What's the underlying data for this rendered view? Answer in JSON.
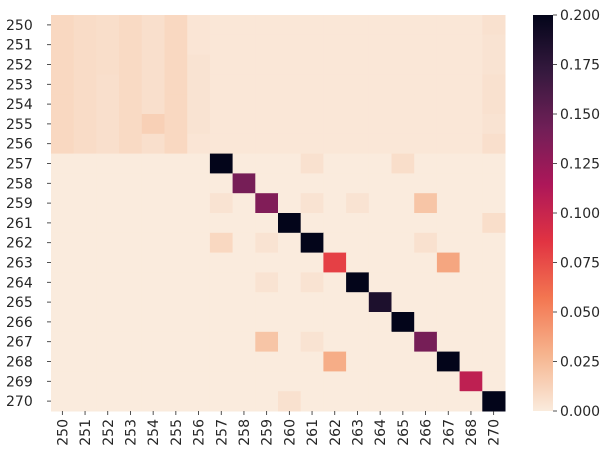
{
  "chart_data": {
    "type": "heatmap",
    "title": "",
    "xlabel": "",
    "ylabel": "",
    "rows": [
      "250",
      "251",
      "252",
      "253",
      "254",
      "255",
      "256",
      "257",
      "258",
      "259",
      "261",
      "262",
      "263",
      "264",
      "265",
      "266",
      "267",
      "268",
      "269",
      "270"
    ],
    "columns": [
      "250",
      "251",
      "252",
      "253",
      "254",
      "255",
      "256",
      "257",
      "258",
      "259",
      "260",
      "261",
      "262",
      "263",
      "264",
      "265",
      "266",
      "267",
      "268",
      "270"
    ],
    "matrix": [
      [
        0.01,
        0.008,
        0.007,
        0.009,
        0.006,
        0.01,
        0.003,
        0.002,
        0.002,
        0.002,
        0.002,
        0.002,
        0.002,
        0.002,
        0.002,
        0.002,
        0.002,
        0.002,
        0.002,
        0.005
      ],
      [
        0.01,
        0.008,
        0.007,
        0.009,
        0.006,
        0.01,
        0.003,
        0.002,
        0.002,
        0.002,
        0.002,
        0.002,
        0.002,
        0.002,
        0.002,
        0.002,
        0.002,
        0.002,
        0.002,
        0.004
      ],
      [
        0.01,
        0.008,
        0.007,
        0.009,
        0.006,
        0.01,
        0.004,
        0.002,
        0.002,
        0.002,
        0.002,
        0.002,
        0.002,
        0.002,
        0.002,
        0.002,
        0.002,
        0.002,
        0.002,
        0.004
      ],
      [
        0.01,
        0.008,
        0.006,
        0.009,
        0.006,
        0.01,
        0.004,
        0.002,
        0.002,
        0.002,
        0.002,
        0.002,
        0.002,
        0.002,
        0.002,
        0.002,
        0.002,
        0.002,
        0.002,
        0.005
      ],
      [
        0.01,
        0.008,
        0.006,
        0.009,
        0.006,
        0.01,
        0.004,
        0.002,
        0.002,
        0.002,
        0.002,
        0.002,
        0.002,
        0.002,
        0.002,
        0.002,
        0.002,
        0.002,
        0.002,
        0.005
      ],
      [
        0.01,
        0.008,
        0.006,
        0.009,
        0.014,
        0.01,
        0.004,
        0.002,
        0.002,
        0.002,
        0.002,
        0.002,
        0.002,
        0.002,
        0.002,
        0.002,
        0.002,
        0.002,
        0.002,
        0.004
      ],
      [
        0.01,
        0.008,
        0.006,
        0.009,
        0.006,
        0.01,
        0.003,
        0.002,
        0.002,
        0.002,
        0.002,
        0.002,
        0.002,
        0.002,
        0.002,
        0.002,
        0.002,
        0.002,
        0.002,
        0.006
      ],
      [
        0.0,
        0.0,
        0.0,
        0.0,
        0.0,
        0.0,
        0.0,
        0.2,
        0.0,
        0.0,
        0.0,
        0.005,
        0.0,
        0.0,
        0.0,
        0.007,
        0.0,
        0.0,
        0.0,
        0.0
      ],
      [
        0.0,
        0.0,
        0.0,
        0.0,
        0.0,
        0.0,
        0.0,
        0.0,
        0.14,
        0.0,
        0.0,
        0.0,
        0.0,
        0.0,
        0.0,
        0.0,
        0.0,
        0.0,
        0.0,
        0.0
      ],
      [
        0.0,
        0.0,
        0.0,
        0.0,
        0.0,
        0.0,
        0.0,
        0.004,
        0.0,
        0.135,
        0.0,
        0.004,
        0.0,
        0.004,
        0.0,
        0.0,
        0.02,
        0.0,
        0.0,
        0.0
      ],
      [
        0.0,
        0.0,
        0.0,
        0.0,
        0.0,
        0.0,
        0.0,
        0.0,
        0.0,
        0.0,
        0.2,
        0.0,
        0.0,
        0.0,
        0.0,
        0.0,
        0.0,
        0.0,
        0.0,
        0.007
      ],
      [
        0.0,
        0.0,
        0.0,
        0.0,
        0.0,
        0.0,
        0.0,
        0.01,
        0.0,
        0.004,
        0.0,
        0.2,
        0.0,
        0.0,
        0.0,
        0.0,
        0.005,
        0.0,
        0.0,
        0.0
      ],
      [
        0.0,
        0.0,
        0.0,
        0.0,
        0.0,
        0.0,
        0.0,
        0.0,
        0.0,
        0.0,
        0.0,
        0.0,
        0.08,
        0.0,
        0.0,
        0.0,
        0.0,
        0.035,
        0.0,
        0.0
      ],
      [
        0.0,
        0.0,
        0.0,
        0.0,
        0.0,
        0.0,
        0.0,
        0.0,
        0.0,
        0.004,
        0.0,
        0.004,
        0.0,
        0.2,
        0.0,
        0.0,
        0.0,
        0.0,
        0.0,
        0.0
      ],
      [
        0.0,
        0.0,
        0.0,
        0.0,
        0.0,
        0.0,
        0.0,
        0.0,
        0.0,
        0.0,
        0.0,
        0.0,
        0.0,
        0.0,
        0.185,
        0.0,
        0.0,
        0.0,
        0.0,
        0.0
      ],
      [
        0.0,
        0.0,
        0.0,
        0.0,
        0.0,
        0.0,
        0.0,
        0.0,
        0.0,
        0.0,
        0.0,
        0.0,
        0.0,
        0.0,
        0.0,
        0.2,
        0.0,
        0.0,
        0.0,
        0.0
      ],
      [
        0.0,
        0.0,
        0.0,
        0.0,
        0.0,
        0.0,
        0.0,
        0.0,
        0.0,
        0.02,
        0.0,
        0.004,
        0.0,
        0.0,
        0.0,
        0.0,
        0.14,
        0.0,
        0.0,
        0.0
      ],
      [
        0.0,
        0.0,
        0.0,
        0.0,
        0.0,
        0.0,
        0.0,
        0.0,
        0.0,
        0.0,
        0.0,
        0.0,
        0.032,
        0.0,
        0.0,
        0.0,
        0.0,
        0.2,
        0.0,
        0.0
      ],
      [
        0.0,
        0.0,
        0.0,
        0.0,
        0.0,
        0.0,
        0.0,
        0.0,
        0.0,
        0.0,
        0.0,
        0.0,
        0.0,
        0.0,
        0.0,
        0.0,
        0.0,
        0.0,
        0.105,
        0.0
      ],
      [
        0.0,
        0.0,
        0.0,
        0.0,
        0.0,
        0.0,
        0.0,
        0.0,
        0.0,
        0.0,
        0.005,
        0.0,
        0.0,
        0.0,
        0.0,
        0.0,
        0.0,
        0.0,
        0.0,
        0.2
      ]
    ],
    "colorbar": {
      "min": 0.0,
      "max": 0.2,
      "ticks": [
        "0.000",
        "0.025",
        "0.050",
        "0.075",
        "0.100",
        "0.125",
        "0.150",
        "0.175",
        "0.200"
      ],
      "colormap": "rocket_r",
      "stops": [
        "#faebdd",
        "#f6b48e",
        "#f37651",
        "#e13342",
        "#ad1759",
        "#701f57",
        "#35193e",
        "#03051a"
      ]
    },
    "grid": false,
    "legend": "colorbar-right"
  }
}
